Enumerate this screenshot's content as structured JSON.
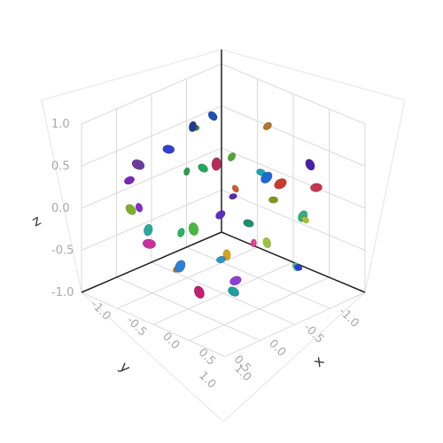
{
  "chart_data": {
    "type": "scatter",
    "title": "",
    "axes": {
      "x": {
        "label": "x",
        "range": [
          -1,
          1
        ],
        "ticks": [
          -1,
          -0.5,
          0,
          0.5,
          1
        ],
        "tick_labels": [
          "-1.0",
          "-0.5",
          "0.0",
          "0.5",
          "1.0"
        ]
      },
      "y": {
        "label": "y",
        "range": [
          -1,
          1
        ],
        "ticks": [
          -1,
          -0.5,
          0,
          0.5,
          1
        ],
        "tick_labels": [
          "-1.0",
          "-0.5",
          "0.0",
          "0.5",
          "1.0"
        ]
      },
      "z": {
        "label": "z",
        "range": [
          -1,
          1
        ],
        "ticks": [
          -1,
          -0.5,
          0,
          0.5,
          1
        ],
        "tick_labels": [
          "-1.0",
          "-0.5",
          "0.0",
          "0.5",
          "1.0"
        ]
      }
    },
    "grid": true,
    "legend": "none",
    "marker": "randomly colored 3D ellipsoids",
    "shape": "sphere of radius 1 centered at origin",
    "points": [
      {
        "x": -0.73,
        "y": -0.35,
        "z": 0.57,
        "c": "#2a8c3c"
      },
      {
        "x": 0.42,
        "y": -0.81,
        "z": 0.38,
        "c": "#4b1fa8"
      },
      {
        "x": -0.12,
        "y": 0.22,
        "z": -0.95,
        "c": "#c21e74"
      },
      {
        "x": 0.64,
        "y": 0.51,
        "z": -0.55,
        "c": "#1f9ea0"
      },
      {
        "x": -0.48,
        "y": 0.83,
        "z": 0.12,
        "c": "#7ab02a"
      },
      {
        "x": 0.87,
        "y": -0.18,
        "z": -0.44,
        "c": "#2f3ad4"
      },
      {
        "x": 0.05,
        "y": -0.58,
        "z": 0.79,
        "c": "#b8742a"
      },
      {
        "x": -0.91,
        "y": 0.27,
        "z": -0.22,
        "c": "#8a2bc7"
      },
      {
        "x": 0.31,
        "y": 0.92,
        "z": 0.18,
        "c": "#25b56a"
      },
      {
        "x": -0.36,
        "y": -0.42,
        "z": -0.83,
        "c": "#d4a617"
      },
      {
        "x": 0.71,
        "y": 0.11,
        "z": 0.68,
        "c": "#1d6bd1"
      },
      {
        "x": -0.15,
        "y": -0.97,
        "z": -0.11,
        "c": "#c93a2f"
      },
      {
        "x": 0.54,
        "y": -0.49,
        "z": -0.67,
        "c": "#3fbf9b"
      },
      {
        "x": -0.62,
        "y": 0.58,
        "z": 0.51,
        "c": "#6d3b9e"
      },
      {
        "x": 0.93,
        "y": 0.33,
        "z": 0.07,
        "c": "#9cc43a"
      },
      {
        "x": -0.27,
        "y": 0.16,
        "z": 0.94,
        "c": "#243a8f"
      },
      {
        "x": 0.18,
        "y": -0.25,
        "z": -0.43,
        "c": "#e0448f"
      },
      {
        "x": -0.44,
        "y": 0.07,
        "z": 0.31,
        "c": "#2c9e48"
      },
      {
        "x": 0.36,
        "y": 0.41,
        "z": 0.22,
        "c": "#5a2dc2"
      },
      {
        "x": -0.08,
        "y": -0.62,
        "z": 0.18,
        "c": "#19a3b5"
      },
      {
        "x": 0.58,
        "y": -0.12,
        "z": 0.28,
        "c": "#7e9a1c"
      },
      {
        "x": -0.69,
        "y": -0.61,
        "z": 0.06,
        "c": "#b52d5e"
      },
      {
        "x": 0.12,
        "y": 0.74,
        "z": -0.36,
        "c": "#2e7fd9"
      },
      {
        "x": -0.55,
        "y": -0.14,
        "z": -0.49,
        "c": "#47b83f"
      },
      {
        "x": 0.26,
        "y": 0.09,
        "z": -0.72,
        "c": "#8f3fd1"
      },
      {
        "x": -0.19,
        "y": 0.47,
        "z": -0.61,
        "c": "#c47a1e"
      },
      {
        "x": 0.81,
        "y": 0.47,
        "z": 0.31,
        "c": "#1b8f6f"
      },
      {
        "x": -0.83,
        "y": -0.07,
        "z": 0.38,
        "c": "#3340c9"
      },
      {
        "x": 0.47,
        "y": -0.69,
        "z": -0.21,
        "c": "#a8c22e"
      },
      {
        "x": -0.33,
        "y": 0.72,
        "z": -0.27,
        "c": "#cc2f9c"
      },
      {
        "x": 0.02,
        "y": 0.31,
        "z": 0.61,
        "c": "#22a85a"
      },
      {
        "x": -0.04,
        "y": -0.18,
        "z": 0.07,
        "c": "#5b29b0"
      },
      {
        "x": 0.67,
        "y": 0.72,
        "z": -0.08,
        "c": "#2c96c4"
      },
      {
        "x": -0.58,
        "y": -0.77,
        "z": -0.25,
        "c": "#d65a2a"
      },
      {
        "x": 0.22,
        "y": -0.91,
        "z": -0.34,
        "c": "#31b07e"
      },
      {
        "x": -0.86,
        "y": 0.46,
        "z": 0.19,
        "c": "#7a26b8"
      },
      {
        "x": 0.39,
        "y": 0.28,
        "z": 0.87,
        "c": "#4da82e"
      },
      {
        "x": -0.42,
        "y": -0.28,
        "z": 0.85,
        "c": "#1f4fb8"
      },
      {
        "x": 0.76,
        "y": -0.55,
        "z": 0.33,
        "c": "#c7344e"
      },
      {
        "x": -0.09,
        "y": 0.98,
        "z": 0.08,
        "c": "#2aa89a"
      }
    ]
  }
}
